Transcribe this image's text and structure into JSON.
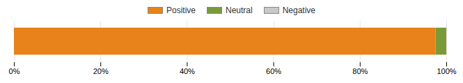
{
  "chart_data": {
    "type": "bar",
    "orientation": "horizontal",
    "stacked": true,
    "categories": [
      null
    ],
    "series": [
      {
        "name": "Positive",
        "color": "#E8821A",
        "values": [
          97.5
        ]
      },
      {
        "name": "Neutral",
        "color": "#7A9A3A",
        "values": [
          2.5
        ]
      },
      {
        "name": "Negative",
        "color": "#C8C8C8",
        "values": [
          0.0
        ]
      }
    ],
    "xlim": [
      0,
      100
    ],
    "xticks": [
      {
        "value": 0,
        "label": "0%"
      },
      {
        "value": 20,
        "label": "20%"
      },
      {
        "value": 40,
        "label": "40%"
      },
      {
        "value": 60,
        "label": "60%"
      },
      {
        "value": 80,
        "label": "80%"
      },
      {
        "value": 100,
        "label": "100%"
      }
    ],
    "grid": true,
    "legend": "top"
  }
}
